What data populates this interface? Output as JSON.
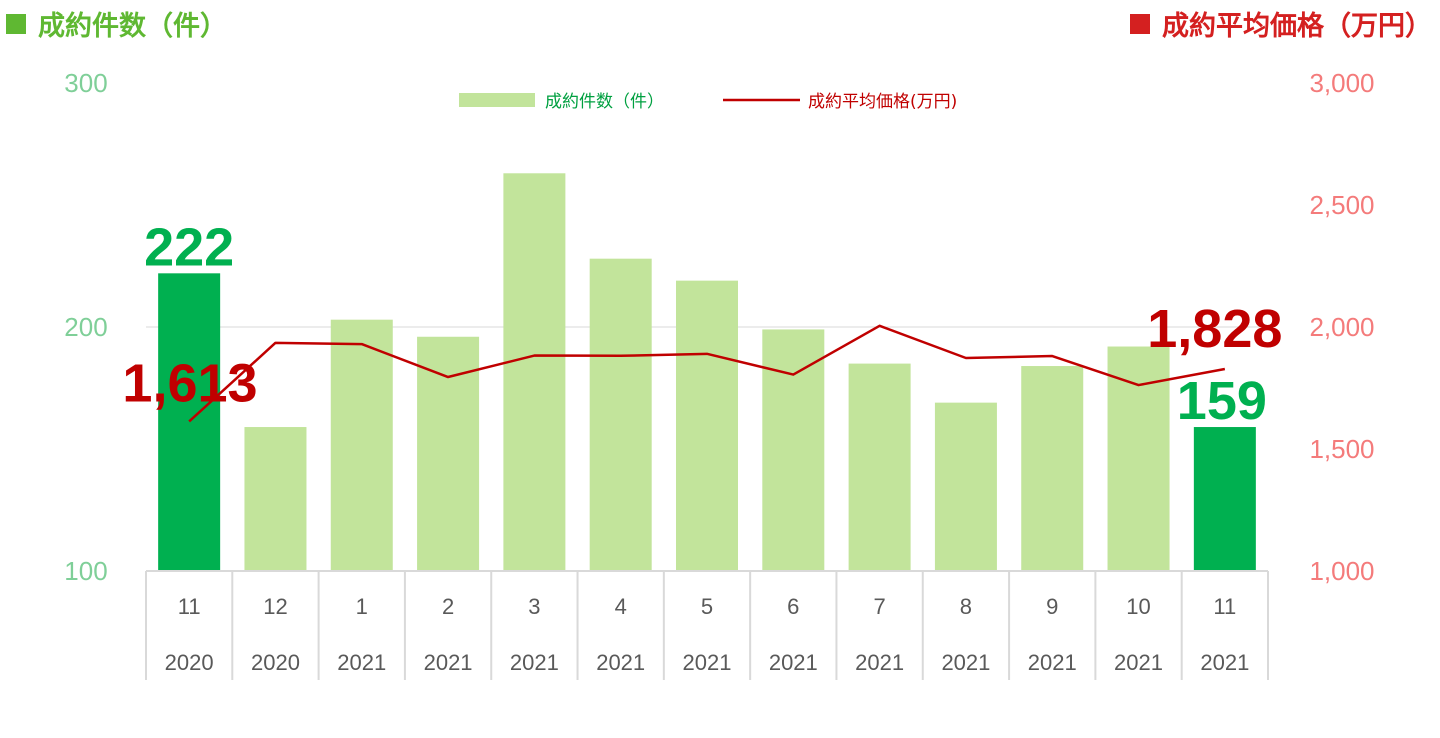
{
  "header": {
    "left_title": "成約件数（件）",
    "right_title": "成約平均価格（万円）",
    "left_color": "#5fb832",
    "right_color": "#d42020"
  },
  "chart_data": {
    "type": "bar+line",
    "categories": [
      "11",
      "12",
      "1",
      "2",
      "3",
      "4",
      "5",
      "6",
      "7",
      "8",
      "9",
      "10",
      "11"
    ],
    "years": [
      "2020",
      "2020",
      "2021",
      "2021",
      "2021",
      "2021",
      "2021",
      "2021",
      "2021",
      "2021",
      "2021",
      "2021",
      "2021"
    ],
    "left_axis": {
      "ylim": [
        100,
        300
      ],
      "ticks": [
        "100",
        "200",
        "300"
      ]
    },
    "right_axis": {
      "ylim": [
        1000,
        3000
      ],
      "ticks": [
        "1,000",
        "1,500",
        "2,000",
        "2,500",
        "3,000"
      ]
    },
    "series": [
      {
        "name": "成約件数（件）",
        "kind": "bar",
        "values": [
          222,
          159,
          203,
          196,
          263,
          228,
          219,
          199,
          185,
          169,
          184,
          192,
          159
        ],
        "color": "#c2e49b",
        "highlight_color": "#00b050",
        "highlight_indices": [
          0,
          12
        ]
      },
      {
        "name": "成約平均価格(万円)",
        "kind": "line",
        "values": [
          1613,
          1935,
          1930,
          1795,
          1883,
          1882,
          1890,
          1805,
          2005,
          1873,
          1881,
          1762,
          1828
        ],
        "color": "#c00000"
      }
    ],
    "data_labels": [
      {
        "text": "222",
        "series": 0,
        "index": 0
      },
      {
        "text": "159",
        "series": 0,
        "index": 12
      },
      {
        "text": "1,613",
        "series": 1,
        "index": 0
      },
      {
        "text": "1,828",
        "series": 1,
        "index": 12
      }
    ],
    "gridlines": true,
    "legend_position": "top-center"
  }
}
